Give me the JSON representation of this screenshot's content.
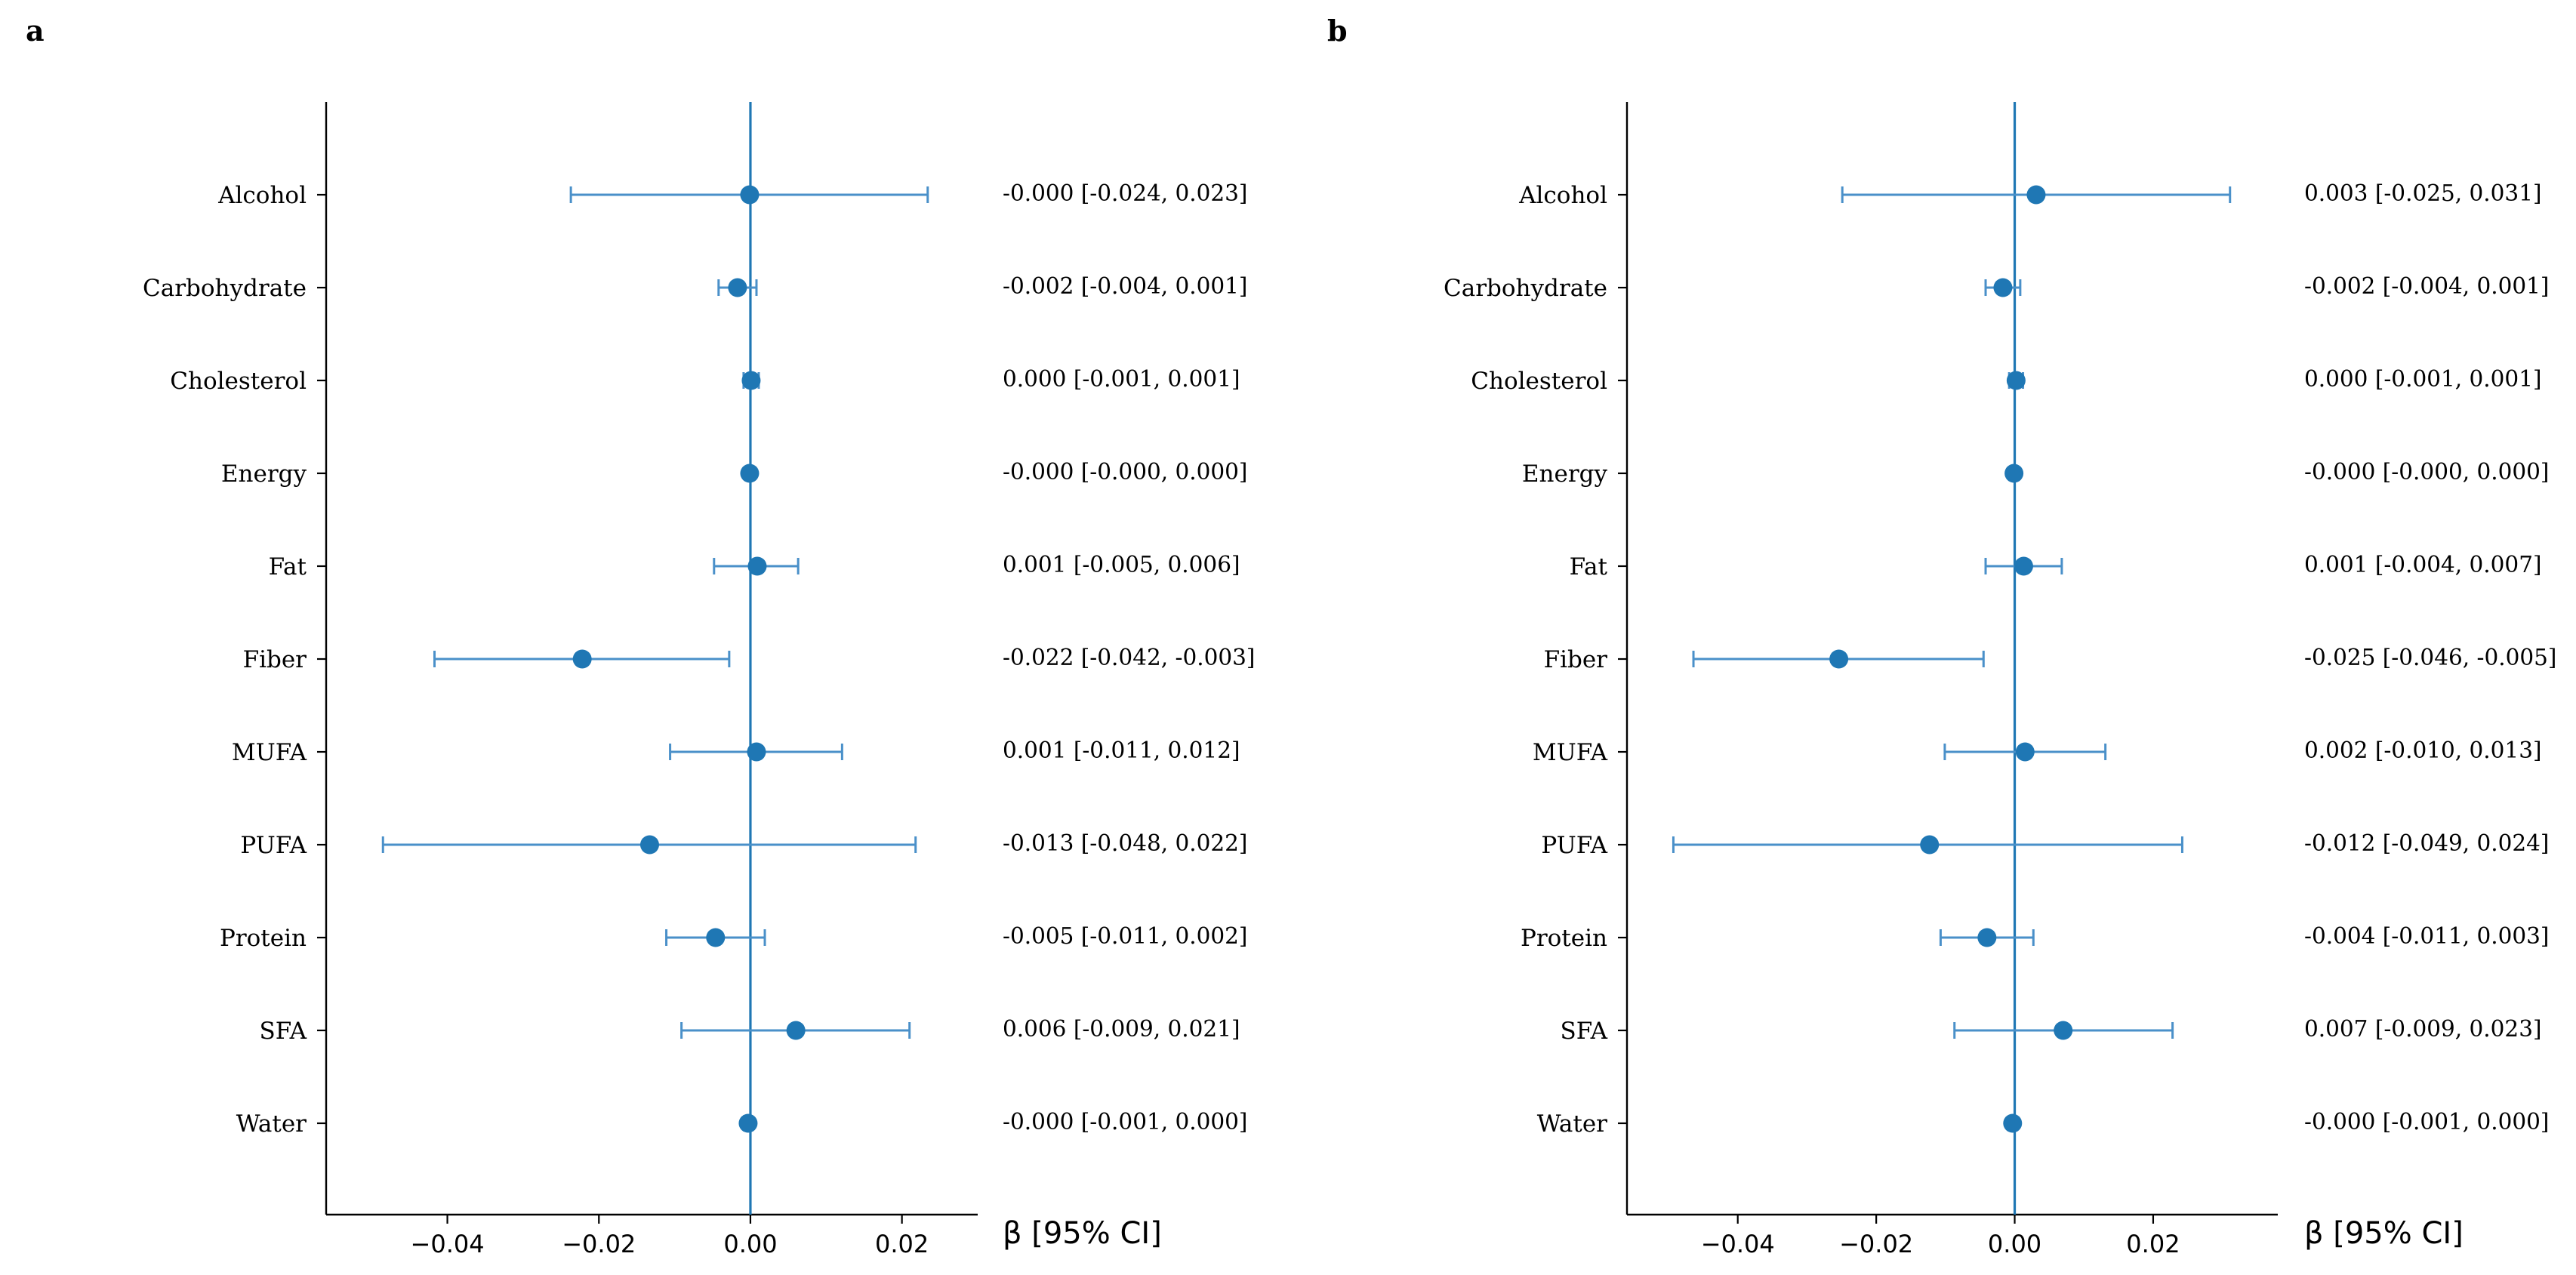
{
  "chart_data": [
    {
      "type": "forest",
      "panel_label": "a",
      "xlabel": "β [95% CI]",
      "xlim": [
        -0.056,
        0.03
      ],
      "xticks": [
        -0.04,
        -0.02,
        0.0,
        0.02
      ],
      "xtick_labels": [
        "−0.04",
        "−0.02",
        "0.00",
        "0.02"
      ],
      "reference_line": 0,
      "grid": false,
      "series_color": "#1f77b4",
      "categories": [
        "Alcohol",
        "Carbohydrate",
        "Cholesterol",
        "Energy",
        "Fat",
        "Fiber",
        "MUFA",
        "PUFA",
        "Protein",
        "SFA",
        "Water"
      ],
      "estimates": [
        -0.0001,
        -0.0017,
        0.0001,
        -0.0001,
        0.0009,
        -0.0222,
        0.0008,
        -0.0133,
        -0.0046,
        0.006,
        -0.0003
      ],
      "ci_low": [
        -0.0237,
        -0.0042,
        -0.0009,
        -0.0003,
        -0.0048,
        -0.0417,
        -0.0106,
        -0.0485,
        -0.0111,
        -0.0091,
        -0.0008
      ],
      "ci_high": [
        0.0234,
        0.0008,
        0.0011,
        0.0001,
        0.0063,
        -0.0028,
        0.0121,
        0.0218,
        0.0019,
        0.021,
        0.0002
      ],
      "annotations": [
        "-0.000 [-0.024, 0.023]",
        "-0.002 [-0.004, 0.001]",
        "0.000 [-0.001, 0.001]",
        "-0.000 [-0.000, 0.000]",
        "0.001 [-0.005, 0.006]",
        "-0.022 [-0.042, -0.003]",
        "0.001 [-0.011, 0.012]",
        "-0.013 [-0.048, 0.022]",
        "-0.005 [-0.011, 0.002]",
        "0.006 [-0.009, 0.021]",
        "-0.000 [-0.001, 0.000]"
      ]
    },
    {
      "type": "forest",
      "panel_label": "b",
      "xlabel": "β [95% CI]",
      "xlim": [
        -0.056,
        0.038
      ],
      "xticks": [
        -0.04,
        -0.02,
        0.0,
        0.02
      ],
      "xtick_labels": [
        "−0.04",
        "−0.02",
        "0.00",
        "0.02"
      ],
      "reference_line": 0,
      "grid": false,
      "series_color": "#1f77b4",
      "categories": [
        "Alcohol",
        "Carbohydrate",
        "Cholesterol",
        "Energy",
        "Fat",
        "Fiber",
        "MUFA",
        "PUFA",
        "Protein",
        "SFA",
        "Water"
      ],
      "estimates": [
        0.0031,
        -0.0017,
        0.0002,
        -0.0001,
        0.0013,
        -0.0254,
        0.0015,
        -0.0123,
        -0.004,
        0.007,
        -0.0003
      ],
      "ci_low": [
        -0.0249,
        -0.0042,
        -0.0008,
        -0.0003,
        -0.0042,
        -0.0464,
        -0.0101,
        -0.0493,
        -0.0107,
        -0.0087,
        -0.0008
      ],
      "ci_high": [
        0.0311,
        0.0008,
        0.0012,
        0.0001,
        0.0068,
        -0.0045,
        0.0131,
        0.0242,
        0.0027,
        0.0228,
        0.0002
      ],
      "annotations": [
        "0.003 [-0.025, 0.031]",
        "-0.002 [-0.004, 0.001]",
        "0.000 [-0.001, 0.001]",
        "-0.000 [-0.000, 0.000]",
        "0.001 [-0.004, 0.007]",
        "-0.025 [-0.046, -0.005]",
        "0.002 [-0.010, 0.013]",
        "-0.012 [-0.049, 0.024]",
        "-0.004 [-0.011, 0.003]",
        "0.007 [-0.009, 0.023]",
        "-0.000 [-0.001, 0.000]"
      ]
    }
  ]
}
